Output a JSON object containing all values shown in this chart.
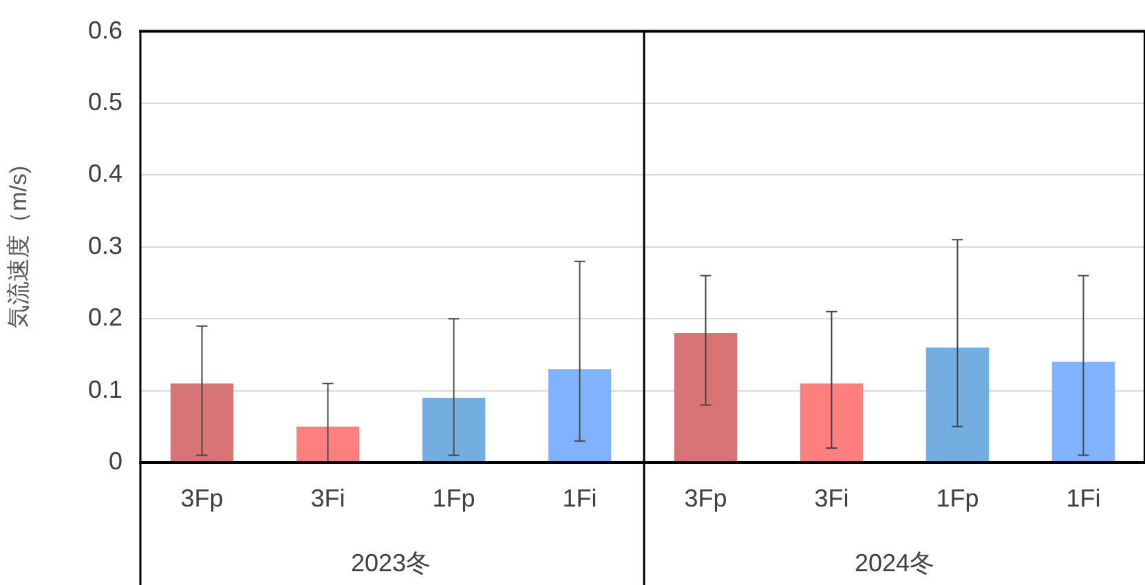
{
  "chart_data": [
    {
      "type": "bar",
      "ylabel": "気流速度（m/s)",
      "xlabel": "2023冬",
      "categories": [
        "3Fp",
        "3Fi",
        "1Fp",
        "1Fi"
      ],
      "values": [
        0.11,
        0.05,
        0.09,
        0.13
      ],
      "colors": [
        "#d97476",
        "#ff7f7f",
        "#74aee0",
        "#7fb2ff"
      ],
      "errors": [
        [
          0.01,
          0.19
        ],
        [
          0,
          0.11
        ],
        [
          0.01,
          0.2
        ],
        [
          0.03,
          0.28
        ]
      ],
      "ylim": [
        0,
        0.6
      ],
      "yticks": [
        0,
        0.1,
        0.2,
        0.3,
        0.4,
        0.5,
        0.6
      ],
      "grid": "y"
    },
    {
      "type": "bar",
      "xlabel": "2024冬",
      "categories": [
        "3Fp",
        "3Fi",
        "1Fp",
        "1Fi"
      ],
      "values": [
        0.18,
        0.11,
        0.16,
        0.14
      ],
      "colors": [
        "#d97476",
        "#ff7f7f",
        "#74aee0",
        "#7fb2ff"
      ],
      "errors": [
        [
          0.08,
          0.26
        ],
        [
          0.02,
          0.21
        ],
        [
          0.05,
          0.31
        ],
        [
          0.01,
          0.26
        ]
      ],
      "ylim": [
        0,
        0.6
      ],
      "yticks": [
        0,
        0.1,
        0.2,
        0.3,
        0.4,
        0.5,
        0.6
      ],
      "grid": "y",
      "tick_labels": "x"
    }
  ]
}
